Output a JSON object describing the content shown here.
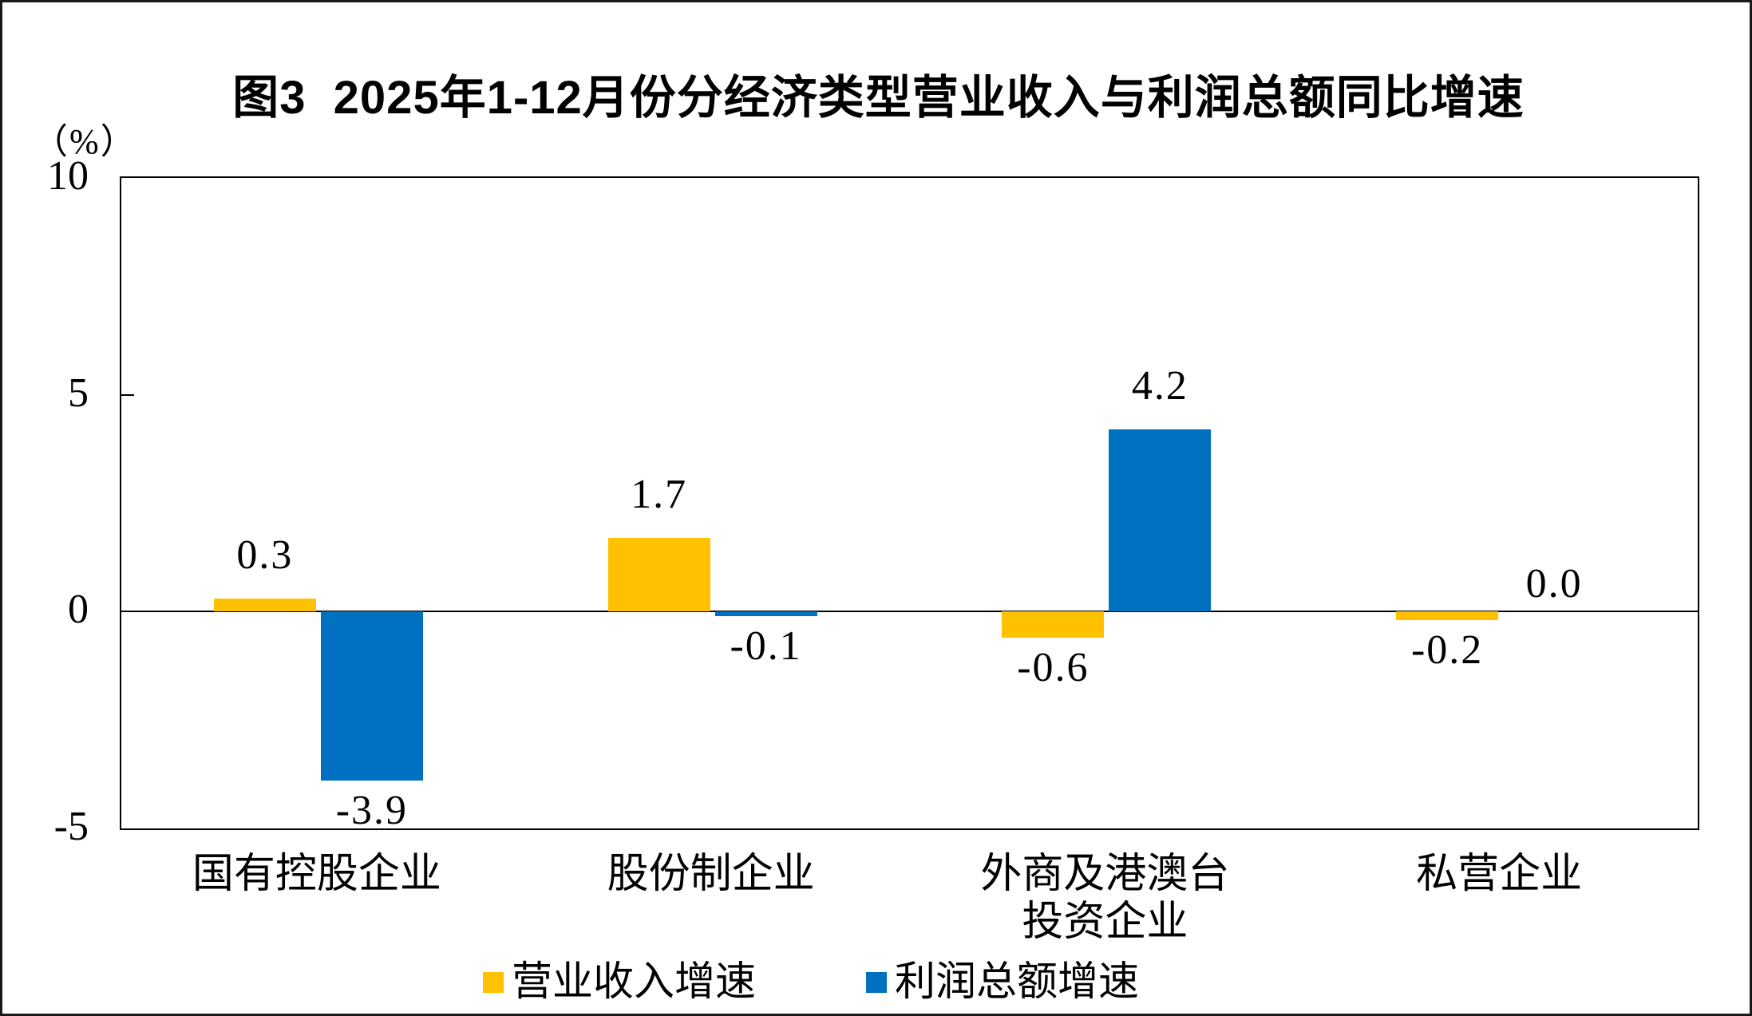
{
  "title": "图3  2025年1-12月份分经济类型营业收入与利润总额同比增速",
  "y_axis": {
    "unit_label": "（%）",
    "min": -5,
    "max": 10,
    "ticks": [
      {
        "label": "10",
        "value": 10
      },
      {
        "label": "5",
        "value": 5
      },
      {
        "label": "0",
        "value": 0
      },
      {
        "label": "-5",
        "value": -5
      }
    ]
  },
  "chart_data": {
    "type": "bar",
    "title": "图3  2025年1-12月份分经济类型营业收入与利润总额同比增速",
    "categories": [
      "国有控股企业",
      "股份制企业",
      "外商及港澳台\n投资企业",
      "私营企业"
    ],
    "series": [
      {
        "name": "营业收入增速",
        "color": "#FFC000",
        "values": [
          0.3,
          1.7,
          -0.6,
          -0.2
        ]
      },
      {
        "name": "利润总额增速",
        "color": "#0070C0",
        "values": [
          -3.9,
          -0.1,
          4.2,
          0.0
        ]
      }
    ],
    "ylabel": "（%）",
    "ylim": [
      -5,
      10
    ],
    "grid": false,
    "legend_position": "bottom",
    "data_labels": true,
    "label_format": "one-decimal"
  }
}
